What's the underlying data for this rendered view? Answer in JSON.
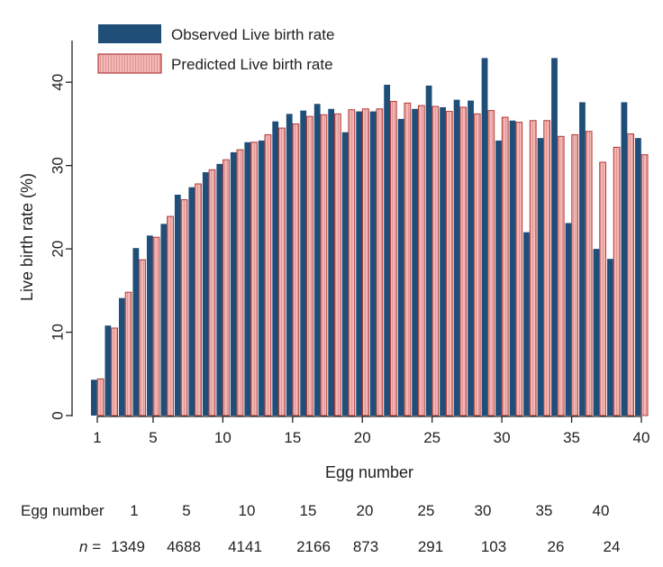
{
  "chart_data": {
    "type": "bar",
    "xlabel": "Egg number",
    "ylabel": "Live birth rate (%)",
    "ylim": [
      0,
      45
    ],
    "yticks": [
      0,
      10,
      20,
      30,
      40
    ],
    "xticks": [
      1,
      5,
      10,
      15,
      20,
      25,
      30,
      35,
      40
    ],
    "x": [
      1,
      2,
      3,
      4,
      5,
      6,
      7,
      8,
      9,
      10,
      11,
      12,
      13,
      14,
      15,
      16,
      17,
      18,
      19,
      20,
      21,
      22,
      23,
      24,
      25,
      26,
      27,
      28,
      29,
      30,
      31,
      32,
      33,
      34,
      35,
      36,
      37,
      38,
      39,
      40
    ],
    "series": [
      {
        "name": "Observed Live birth rate",
        "color": "#1f4e79",
        "values": [
          4.3,
          10.8,
          14.1,
          20.1,
          21.6,
          23.0,
          26.5,
          27.4,
          29.2,
          30.2,
          31.6,
          32.8,
          33.0,
          35.3,
          36.2,
          36.6,
          37.4,
          36.8,
          34.0,
          36.5,
          36.5,
          39.7,
          35.6,
          36.8,
          39.6,
          37.0,
          37.9,
          37.8,
          42.9,
          33.0,
          35.4,
          22.0,
          33.3,
          42.9,
          23.1,
          37.6,
          20.0,
          18.8,
          37.6,
          33.3
        ]
      },
      {
        "name": "Predicted Live birth rate",
        "color": "#e8a0a0",
        "values": [
          4.4,
          10.5,
          14.8,
          18.7,
          21.4,
          23.9,
          25.9,
          27.8,
          29.5,
          30.7,
          31.9,
          32.8,
          33.7,
          34.5,
          35.0,
          35.9,
          36.1,
          36.2,
          36.7,
          36.8,
          36.8,
          37.7,
          37.5,
          37.2,
          37.1,
          36.5,
          37.0,
          36.2,
          36.6,
          35.8,
          35.2,
          35.4,
          35.4,
          33.5,
          33.7,
          34.1,
          30.4,
          32.2,
          33.8,
          31.3
        ]
      }
    ]
  },
  "table": {
    "row1_label": "Egg number",
    "row2_label_n": "n",
    "row2_label_eq": "=",
    "columns": [
      {
        "egg": "1",
        "n": "1349"
      },
      {
        "egg": "5",
        "n": "4688"
      },
      {
        "egg": "10",
        "n": "4141"
      },
      {
        "egg": "15",
        "n": "2166"
      },
      {
        "egg": "20",
        "n": "873"
      },
      {
        "egg": "25",
        "n": "291"
      },
      {
        "egg": "30",
        "n": "103"
      },
      {
        "egg": "35",
        "n": "26"
      },
      {
        "egg": "40",
        "n": "24"
      }
    ]
  }
}
